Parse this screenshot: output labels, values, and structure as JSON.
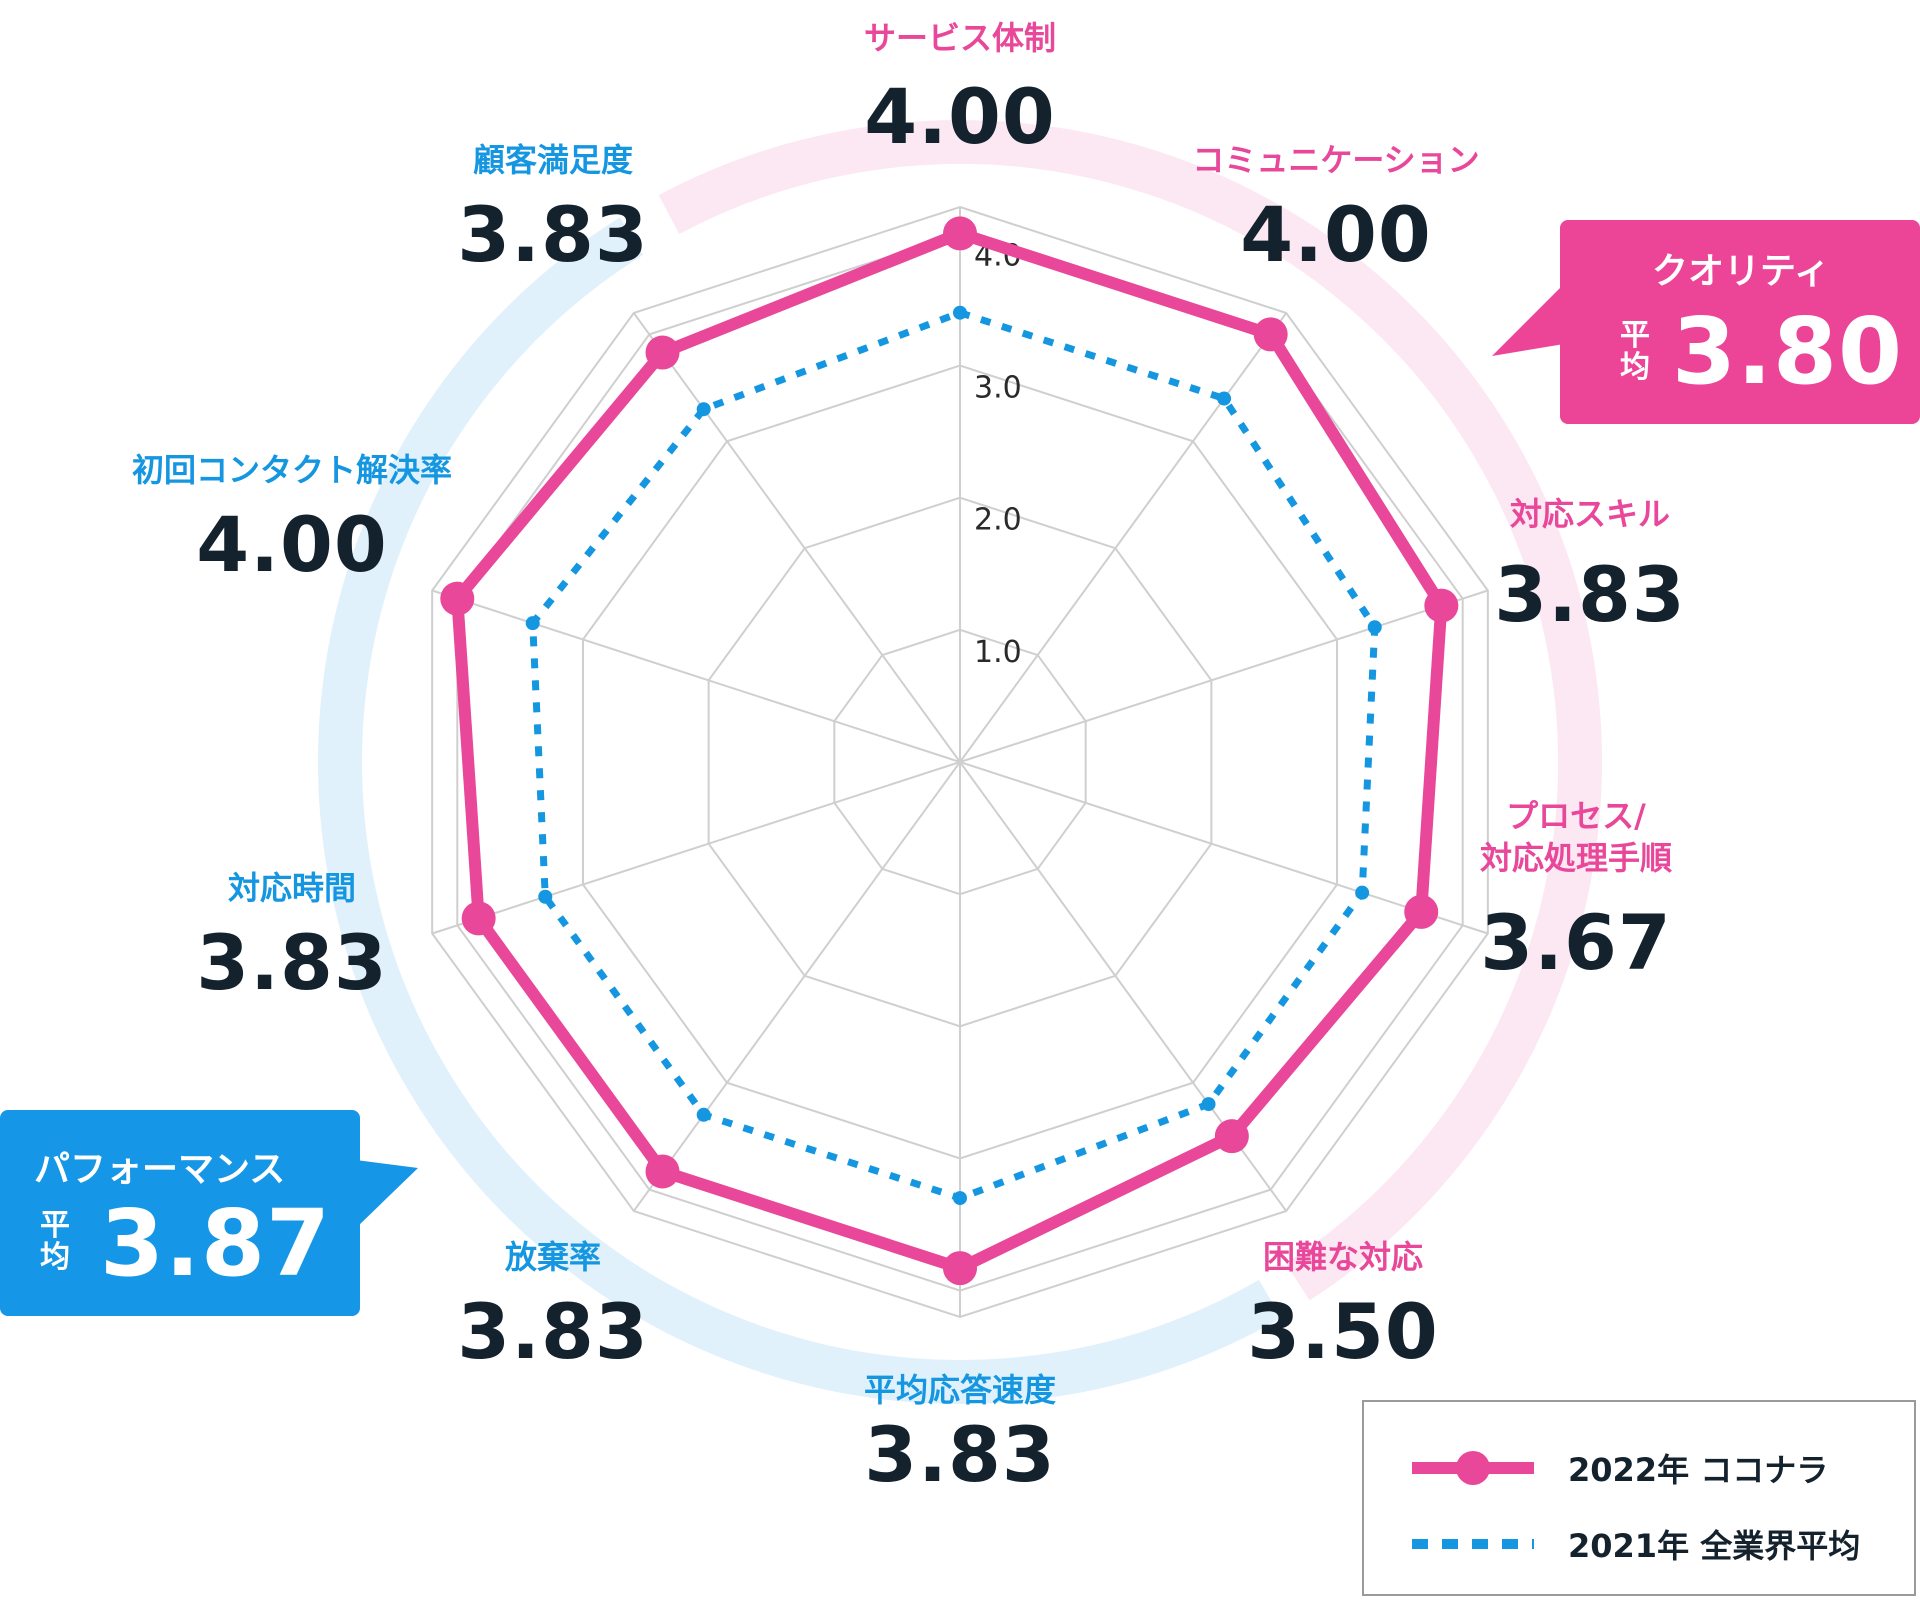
{
  "chart_data": {
    "type": "radar",
    "axes": [
      {
        "name": "サービス体制",
        "value_label": "4.00",
        "group": "quality"
      },
      {
        "name": "コミュニケーション",
        "value_label": "4.00",
        "group": "quality"
      },
      {
        "name": "対応スキル",
        "value_label": "3.83",
        "group": "quality"
      },
      {
        "name": "プロセス/\n対応処理手順",
        "value_label": "3.67",
        "group": "quality"
      },
      {
        "name": "困難な対応",
        "value_label": "3.50",
        "group": "quality"
      },
      {
        "name": "平均応答速度",
        "value_label": "3.83",
        "group": "performance"
      },
      {
        "name": "放棄率",
        "value_label": "3.83",
        "group": "performance"
      },
      {
        "name": "対応時間",
        "value_label": "3.83",
        "group": "performance"
      },
      {
        "name": "初回コンタクト解決率",
        "value_label": "4.00",
        "group": "performance"
      },
      {
        "name": "顧客満足度",
        "value_label": "3.83",
        "group": "performance"
      }
    ],
    "rmax": 4.2,
    "ticks": [
      "1.0",
      "2.0",
      "3.0",
      "4.0"
    ],
    "tick_values": [
      1,
      2,
      3,
      4
    ],
    "series": [
      {
        "name": "2022年 ココナラ",
        "color": "#e8479a",
        "style": "solid-with-markers",
        "values": [
          4.0,
          4.0,
          3.83,
          3.67,
          3.5,
          3.83,
          3.83,
          3.83,
          4.0,
          3.83
        ]
      },
      {
        "name": "2021年 全業界平均",
        "color": "#1596e0",
        "style": "dotted",
        "values": [
          3.4,
          3.4,
          3.3,
          3.2,
          3.2,
          3.3,
          3.3,
          3.3,
          3.4,
          3.3
        ]
      }
    ],
    "groups": {
      "quality": {
        "title": "クオリティ",
        "avg_label": "平\n均",
        "avg_value": "3.80",
        "color": "#ec4497",
        "band_color": "#fce8f2"
      },
      "performance": {
        "title": "パフォーマンス",
        "avg_label": "平\n均",
        "avg_value": "3.87",
        "color": "#1596e6",
        "band_color": "#e0f1fc"
      }
    },
    "legend_position": "bottom-right"
  }
}
